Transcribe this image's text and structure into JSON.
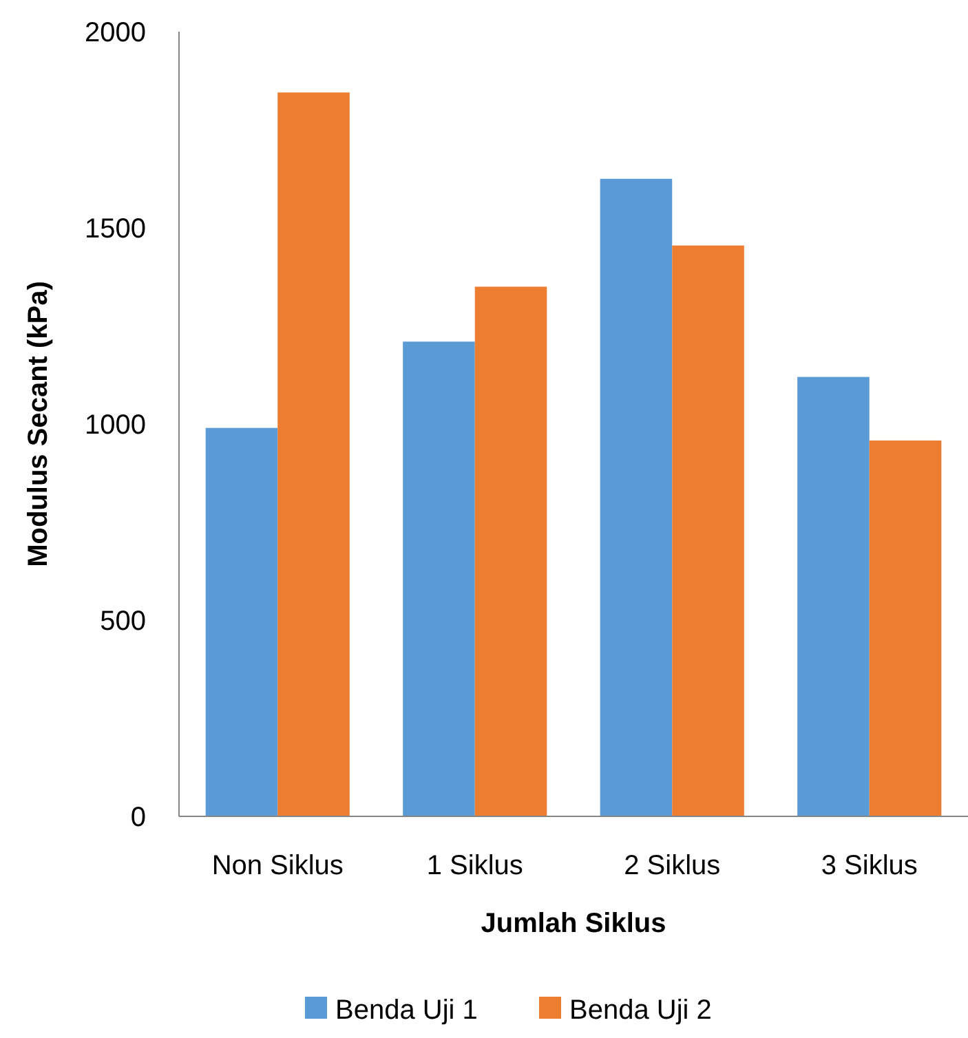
{
  "chart_data": {
    "type": "bar",
    "xlabel": "Jumlah Siklus",
    "ylabel": "Modulus Secant (kPa)",
    "categories": [
      "Non Siklus",
      "1 Siklus",
      "2 Siklus",
      "3 Siklus"
    ],
    "series": [
      {
        "name": "Benda Uji 1",
        "color": "#5b9bd5",
        "values": [
          990,
          1210,
          1625,
          1120
        ]
      },
      {
        "name": "Benda Uji 2",
        "color": "#ed7d31",
        "values": [
          1845,
          1350,
          1455,
          958
        ]
      }
    ],
    "ylim": [
      0,
      2000
    ],
    "yticks": [
      0,
      500,
      1000,
      1500,
      2000
    ],
    "grid": false,
    "legend": "bottom"
  }
}
